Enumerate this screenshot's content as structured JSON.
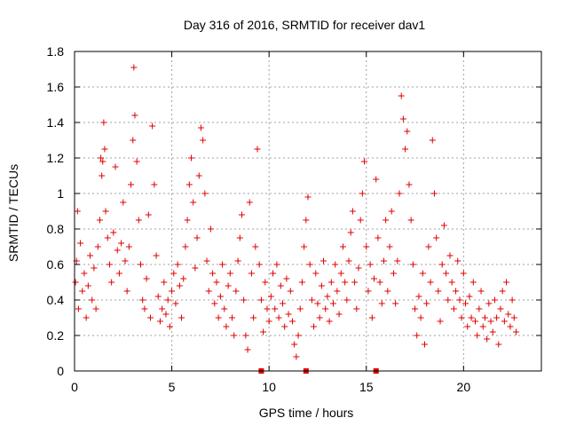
{
  "chart_data": {
    "type": "scatter",
    "title": "Day 316 of 2016, SRMTID for receiver dav1",
    "xlabel": "GPS time / hours",
    "ylabel": "SRMTID / TECUs",
    "xlim": [
      0,
      24
    ],
    "ylim": [
      0,
      1.8
    ],
    "grid": true,
    "x_ticks": [
      0,
      5,
      10,
      15,
      20
    ],
    "x_tick_labels": [
      "0",
      "5",
      "10",
      "15",
      "20"
    ],
    "y_ticks": [
      0,
      0.2,
      0.4,
      0.6,
      0.8,
      1.0,
      1.2,
      1.4,
      1.6,
      1.8
    ],
    "y_tick_labels": [
      "0",
      "0.2",
      "0.4",
      "0.6",
      "0.8",
      "1",
      "1.2",
      "1.4",
      "1.6",
      "1.8"
    ],
    "marker": "+",
    "color": "#e00000",
    "series": [
      {
        "name": "SRMTID",
        "points": [
          [
            0.05,
            0.5
          ],
          [
            0.1,
            0.62
          ],
          [
            0.15,
            0.9
          ],
          [
            0.2,
            0.35
          ],
          [
            0.3,
            0.72
          ],
          [
            0.4,
            0.45
          ],
          [
            0.5,
            0.55
          ],
          [
            0.6,
            0.3
          ],
          [
            0.7,
            0.48
          ],
          [
            0.8,
            0.65
          ],
          [
            0.9,
            0.4
          ],
          [
            1.0,
            0.58
          ],
          [
            1.1,
            0.35
          ],
          [
            1.2,
            0.7
          ],
          [
            1.3,
            0.85
          ],
          [
            1.35,
            1.2
          ],
          [
            1.4,
            1.1
          ],
          [
            1.45,
            1.18
          ],
          [
            1.5,
            1.4
          ],
          [
            1.55,
            1.25
          ],
          [
            1.6,
            0.9
          ],
          [
            1.7,
            0.75
          ],
          [
            1.8,
            0.6
          ],
          [
            1.9,
            0.5
          ],
          [
            2.0,
            0.78
          ],
          [
            2.1,
            1.15
          ],
          [
            2.2,
            0.68
          ],
          [
            2.3,
            0.55
          ],
          [
            2.4,
            0.72
          ],
          [
            2.5,
            0.95
          ],
          [
            2.6,
            0.62
          ],
          [
            2.7,
            0.45
          ],
          [
            2.8,
            0.7
          ],
          [
            2.9,
            1.05
          ],
          [
            3.0,
            1.3
          ],
          [
            3.05,
            1.71
          ],
          [
            3.1,
            1.44
          ],
          [
            3.2,
            1.18
          ],
          [
            3.3,
            0.85
          ],
          [
            3.4,
            0.6
          ],
          [
            3.5,
            0.4
          ],
          [
            3.6,
            0.35
          ],
          [
            3.7,
            0.52
          ],
          [
            3.8,
            0.88
          ],
          [
            3.9,
            0.3
          ],
          [
            4.0,
            1.38
          ],
          [
            4.1,
            1.05
          ],
          [
            4.2,
            0.65
          ],
          [
            4.3,
            0.42
          ],
          [
            4.4,
            0.28
          ],
          [
            4.5,
            0.35
          ],
          [
            4.6,
            0.5
          ],
          [
            4.7,
            0.32
          ],
          [
            4.8,
            0.4
          ],
          [
            4.9,
            0.25
          ],
          [
            5.0,
            0.45
          ],
          [
            5.1,
            0.55
          ],
          [
            5.2,
            0.38
          ],
          [
            5.3,
            0.6
          ],
          [
            5.4,
            0.48
          ],
          [
            5.5,
            0.3
          ],
          [
            5.6,
            0.52
          ],
          [
            5.7,
            0.7
          ],
          [
            5.8,
            0.85
          ],
          [
            5.9,
            1.05
          ],
          [
            6.0,
            1.2
          ],
          [
            6.1,
            0.95
          ],
          [
            6.2,
            0.58
          ],
          [
            6.3,
            0.75
          ],
          [
            6.4,
            1.1
          ],
          [
            6.5,
            1.37
          ],
          [
            6.6,
            1.3
          ],
          [
            6.7,
            1.0
          ],
          [
            6.8,
            0.62
          ],
          [
            6.9,
            0.45
          ],
          [
            7.0,
            0.8
          ],
          [
            7.1,
            0.55
          ],
          [
            7.2,
            0.38
          ],
          [
            7.3,
            0.5
          ],
          [
            7.4,
            0.3
          ],
          [
            7.5,
            0.42
          ],
          [
            7.6,
            0.6
          ],
          [
            7.7,
            0.35
          ],
          [
            7.8,
            0.25
          ],
          [
            7.9,
            0.48
          ],
          [
            8.0,
            0.55
          ],
          [
            8.1,
            0.3
          ],
          [
            8.2,
            0.2
          ],
          [
            8.3,
            0.45
          ],
          [
            8.4,
            0.62
          ],
          [
            8.5,
            0.75
          ],
          [
            8.6,
            0.88
          ],
          [
            8.7,
            0.4
          ],
          [
            8.8,
            0.2
          ],
          [
            8.9,
            0.12
          ],
          [
            9.0,
            0.95
          ],
          [
            9.1,
            0.55
          ],
          [
            9.2,
            0.3
          ],
          [
            9.3,
            0.7
          ],
          [
            9.4,
            1.25
          ],
          [
            9.5,
            0.6
          ],
          [
            9.6,
            0.4
          ],
          [
            9.7,
            0.22
          ],
          [
            9.8,
            0.5
          ],
          [
            9.9,
            0.35
          ],
          [
            10.0,
            0.28
          ],
          [
            10.1,
            0.42
          ],
          [
            10.2,
            0.55
          ],
          [
            10.3,
            0.35
          ],
          [
            10.4,
            0.6
          ],
          [
            10.5,
            0.3
          ],
          [
            10.6,
            0.48
          ],
          [
            10.7,
            0.38
          ],
          [
            10.8,
            0.25
          ],
          [
            10.9,
            0.52
          ],
          [
            11.0,
            0.32
          ],
          [
            11.1,
            0.45
          ],
          [
            11.2,
            0.28
          ],
          [
            11.3,
            0.15
          ],
          [
            11.4,
            0.08
          ],
          [
            11.5,
            0.2
          ],
          [
            11.6,
            0.35
          ],
          [
            11.7,
            0.5
          ],
          [
            11.8,
            0.7
          ],
          [
            11.9,
            0.85
          ],
          [
            12.0,
            0.98
          ],
          [
            12.1,
            0.6
          ],
          [
            12.2,
            0.4
          ],
          [
            12.3,
            0.25
          ],
          [
            12.4,
            0.55
          ],
          [
            12.5,
            0.38
          ],
          [
            12.6,
            0.3
          ],
          [
            12.7,
            0.48
          ],
          [
            12.8,
            0.62
          ],
          [
            12.9,
            0.35
          ],
          [
            13.0,
            0.42
          ],
          [
            13.1,
            0.28
          ],
          [
            13.2,
            0.5
          ],
          [
            13.3,
            0.38
          ],
          [
            13.4,
            0.6
          ],
          [
            13.5,
            0.45
          ],
          [
            13.6,
            0.32
          ],
          [
            13.7,
            0.55
          ],
          [
            13.8,
            0.7
          ],
          [
            13.9,
            0.5
          ],
          [
            14.0,
            0.4
          ],
          [
            14.1,
            0.62
          ],
          [
            14.2,
            0.78
          ],
          [
            14.3,
            0.9
          ],
          [
            14.4,
            0.5
          ],
          [
            14.5,
            0.35
          ],
          [
            14.6,
            0.58
          ],
          [
            14.7,
            0.85
          ],
          [
            14.8,
            1.0
          ],
          [
            14.9,
            1.18
          ],
          [
            15.0,
            0.7
          ],
          [
            15.1,
            0.45
          ],
          [
            15.2,
            0.6
          ],
          [
            15.3,
            0.3
          ],
          [
            15.4,
            0.52
          ],
          [
            15.5,
            1.08
          ],
          [
            15.6,
            0.75
          ],
          [
            15.7,
            0.5
          ],
          [
            15.8,
            0.38
          ],
          [
            15.9,
            0.62
          ],
          [
            16.0,
            0.85
          ],
          [
            16.1,
            0.45
          ],
          [
            16.2,
            0.7
          ],
          [
            16.3,
            0.9
          ],
          [
            16.4,
            0.55
          ],
          [
            16.5,
            0.38
          ],
          [
            16.6,
            0.62
          ],
          [
            16.7,
            1.0
          ],
          [
            16.8,
            1.55
          ],
          [
            16.9,
            1.42
          ],
          [
            17.0,
            1.25
          ],
          [
            17.1,
            1.35
          ],
          [
            17.2,
            1.05
          ],
          [
            17.3,
            0.85
          ],
          [
            17.4,
            0.6
          ],
          [
            17.5,
            0.35
          ],
          [
            17.6,
            0.2
          ],
          [
            17.7,
            0.42
          ],
          [
            17.8,
            0.3
          ],
          [
            17.9,
            0.55
          ],
          [
            18.0,
            0.15
          ],
          [
            18.1,
            0.38
          ],
          [
            18.2,
            0.7
          ],
          [
            18.3,
            0.5
          ],
          [
            18.4,
            1.3
          ],
          [
            18.5,
            1.0
          ],
          [
            18.6,
            0.75
          ],
          [
            18.7,
            0.45
          ],
          [
            18.8,
            0.28
          ],
          [
            18.9,
            0.6
          ],
          [
            19.0,
            0.82
          ],
          [
            19.1,
            0.55
          ],
          [
            19.2,
            0.4
          ],
          [
            19.3,
            0.65
          ],
          [
            19.4,
            0.5
          ],
          [
            19.5,
            0.35
          ],
          [
            19.6,
            0.45
          ],
          [
            19.7,
            0.62
          ],
          [
            19.8,
            0.4
          ],
          [
            19.9,
            0.3
          ],
          [
            20.0,
            0.55
          ],
          [
            20.1,
            0.38
          ],
          [
            20.2,
            0.25
          ],
          [
            20.3,
            0.42
          ],
          [
            20.4,
            0.3
          ],
          [
            20.5,
            0.5
          ],
          [
            20.6,
            0.28
          ],
          [
            20.7,
            0.2
          ],
          [
            20.8,
            0.35
          ],
          [
            20.9,
            0.45
          ],
          [
            21.0,
            0.25
          ],
          [
            21.1,
            0.3
          ],
          [
            21.2,
            0.18
          ],
          [
            21.3,
            0.38
          ],
          [
            21.4,
            0.28
          ],
          [
            21.5,
            0.22
          ],
          [
            21.6,
            0.4
          ],
          [
            21.7,
            0.3
          ],
          [
            21.8,
            0.15
          ],
          [
            21.9,
            0.35
          ],
          [
            22.0,
            0.45
          ],
          [
            22.1,
            0.28
          ],
          [
            22.2,
            0.5
          ],
          [
            22.3,
            0.32
          ],
          [
            22.4,
            0.25
          ],
          [
            22.5,
            0.4
          ],
          [
            22.6,
            0.3
          ],
          [
            22.7,
            0.22
          ]
        ]
      }
    ],
    "zero_markers": [
      9.6,
      11.9,
      15.5
    ]
  }
}
